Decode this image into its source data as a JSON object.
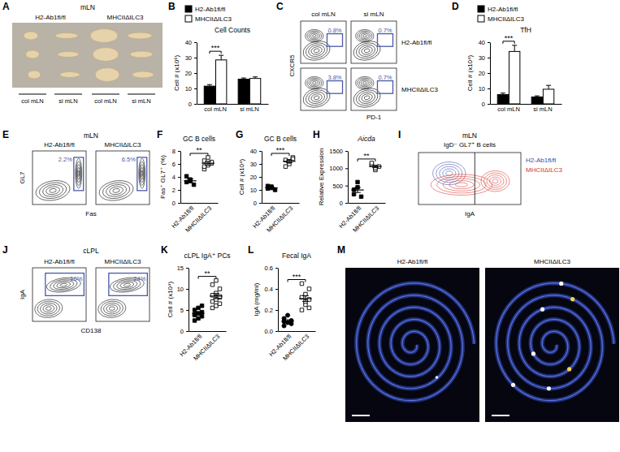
{
  "panel_labels": [
    "A",
    "B",
    "C",
    "D",
    "E",
    "F",
    "G",
    "H",
    "I",
    "J",
    "K",
    "L",
    "M"
  ],
  "panels": {
    "A": {
      "title": "mLN",
      "columns": [
        "H2-Ab1fl/fl",
        "MHCIIΔILC3"
      ],
      "sublabels": [
        "col mLN",
        "si mLN"
      ]
    },
    "C": {
      "columns": [
        "col mLN",
        "si mLN"
      ],
      "rows": [
        "H2-Ab1fl/fl",
        "MHCIIΔILC3"
      ],
      "x_label": "PD-1",
      "y_label": "CXCR5",
      "gates": [
        [
          "0.8%",
          "0.7%"
        ],
        [
          "3.8%",
          "0.7%"
        ]
      ]
    },
    "E": {
      "title": "mLN",
      "columns": [
        "H2-Ab1fl/fl",
        "MHCIIΔILC3"
      ],
      "x_label": "Fas",
      "y_label": "GL7",
      "gates": [
        "2.2%",
        "6.5%"
      ]
    },
    "I": {
      "title": "mLN",
      "subtitle": "IgD⁻ GL7⁺ B cells",
      "x_label": "IgA",
      "legend": [
        {
          "name": "H2-Ab1fl/fl",
          "color": "#3b4ba8"
        },
        {
          "name": "MHCIIΔILC3",
          "color": "#d9342b"
        }
      ]
    },
    "J": {
      "title": "cLPL",
      "columns": [
        "H2-Ab1fl/fl",
        "MHCIIΔILC3"
      ],
      "x_label": "CD138",
      "y_label": "IgA",
      "gates": [
        "10%",
        "24%"
      ]
    },
    "M": {
      "columns": [
        "H2-Ab1fl/fl",
        "MHCIIΔILC3"
      ]
    }
  },
  "chart_data": [
    {
      "type": "bar",
      "title": "Cell Counts",
      "y_label": "Cell # (x10⁶)",
      "categories": [
        "col mLN",
        "si mLN"
      ],
      "series": [
        {
          "name": "H2-Ab1fl/fl",
          "color": "#000000",
          "values": [
            11.5,
            16
          ],
          "errors": [
            1,
            0.8
          ]
        },
        {
          "name": "MHCIIΔILC3",
          "color": "#ffffff",
          "values": [
            28.5,
            16.5
          ],
          "errors": [
            3,
            1
          ]
        }
      ],
      "ylim": [
        0,
        40
      ],
      "yticks": [
        0,
        10,
        20,
        30,
        40
      ],
      "legend": "top",
      "annotations": [
        "***"
      ]
    },
    {
      "type": "bar",
      "title": "TfH",
      "y_label": "Cell # (x10⁴)",
      "categories": [
        "col mLN",
        "si mLN"
      ],
      "series": [
        {
          "name": "H2-Ab1fl/fl",
          "color": "#000000",
          "values": [
            6,
            4.5
          ],
          "errors": [
            1,
            0.7
          ]
        },
        {
          "name": "MHCIIΔILC3",
          "color": "#ffffff",
          "values": [
            34,
            9.5
          ],
          "errors": [
            4,
            2.5
          ]
        }
      ],
      "ylim": [
        0,
        40
      ],
      "yticks": [
        0,
        10,
        20,
        30,
        40
      ],
      "legend": "top",
      "annotations": [
        "***"
      ]
    },
    {
      "type": "strip",
      "title": "GC B cells",
      "y_label": "Fas⁺ GL7⁺ (%)",
      "series": [
        {
          "name": "H2-Ab1fl/fl",
          "color": "#000000",
          "marker": "square",
          "values": [
            3.2,
            3.6,
            2.8,
            4.1,
            3.4
          ],
          "mean": 3.4,
          "sem": 0.3
        },
        {
          "name": "MHCIIΔILC3",
          "color": "#ffffff",
          "marker": "square",
          "values": [
            5.2,
            5.8,
            6.1,
            6.5,
            7.0,
            6.3,
            5.6
          ],
          "mean": 6.1,
          "sem": 0.3
        }
      ],
      "ylim": [
        0,
        8
      ],
      "yticks": [
        0,
        2,
        4,
        6,
        8
      ],
      "annotations": [
        "**"
      ]
    },
    {
      "type": "strip",
      "title": "GC B cells",
      "y_label": "Cell # (x10⁴)",
      "series": [
        {
          "name": "H2-Ab1fl/fl",
          "color": "#000000",
          "marker": "square",
          "values": [
            11,
            12.5,
            10,
            13,
            11.5
          ],
          "mean": 11.6,
          "sem": 0.5
        },
        {
          "name": "MHCIIΔILC3",
          "color": "#ffffff",
          "marker": "square",
          "values": [
            33,
            30,
            35,
            28,
            32,
            34
          ],
          "mean": 32,
          "sem": 1.1
        }
      ],
      "ylim": [
        0,
        40
      ],
      "yticks": [
        0,
        10,
        20,
        30,
        40
      ],
      "annotations": [
        "***"
      ]
    },
    {
      "type": "strip",
      "title": "Aicda",
      "y_label": "Relative Expression",
      "series": [
        {
          "name": "H2-Ab1fl/fl",
          "color": "#000000",
          "marker": "square",
          "values": [
            250,
            600,
            180,
            380,
            450
          ],
          "mean": 372,
          "sem": 72
        },
        {
          "name": "MHCIIΔILC3",
          "color": "#ffffff",
          "marker": "square",
          "values": [
            1100,
            950,
            1050,
            1150,
            1000
          ],
          "mean": 1050,
          "sem": 35
        }
      ],
      "ylim": [
        0,
        1500
      ],
      "yticks": [
        0,
        500,
        1000,
        1500
      ],
      "annotations": [
        "**"
      ]
    },
    {
      "type": "strip",
      "title": "cLPL IgA⁺ PCs",
      "y_label": "Cell # (x10⁴)",
      "series": [
        {
          "name": "H2-Ab1fl/fl",
          "color": "#000000",
          "marker": "square",
          "values": [
            2.5,
            3.0,
            3.5,
            4.0,
            4.2,
            4.5,
            5.0,
            5.5,
            6.0,
            3.8
          ],
          "mean": 4.2,
          "sem": 0.35
        },
        {
          "name": "MHCIIΔILC3",
          "color": "#ffffff",
          "marker": "square",
          "values": [
            5.5,
            6.0,
            6.5,
            7.0,
            7.5,
            8.0,
            8.5,
            9.0,
            10.0,
            11.0,
            12.0,
            8.2
          ],
          "mean": 8.3,
          "sem": 0.6
        }
      ],
      "ylim": [
        0,
        15
      ],
      "yticks": [
        0,
        5,
        10,
        15
      ],
      "annotations": [
        "**"
      ]
    },
    {
      "type": "strip",
      "title": "Fecal IgA",
      "y_label": "IgA (mg/ml)",
      "series": [
        {
          "name": "H2-Ab1fl/fl",
          "color": "#000000",
          "marker": "circle",
          "values": [
            0.05,
            0.08,
            0.1,
            0.12,
            0.15,
            0.07,
            0.09
          ],
          "mean": 0.094,
          "sem": 0.013
        },
        {
          "name": "MHCIIΔILC3",
          "color": "#ffffff",
          "marker": "square",
          "values": [
            0.2,
            0.25,
            0.3,
            0.32,
            0.35,
            0.4,
            0.45,
            0.28,
            0.22
          ],
          "mean": 0.308,
          "sem": 0.027
        }
      ],
      "ylim": [
        0,
        0.6
      ],
      "yticks": [
        {
          "value": 0,
          "label": "0.0"
        },
        0.2,
        0.4,
        0.6
      ],
      "annotations": [
        "***"
      ]
    }
  ]
}
